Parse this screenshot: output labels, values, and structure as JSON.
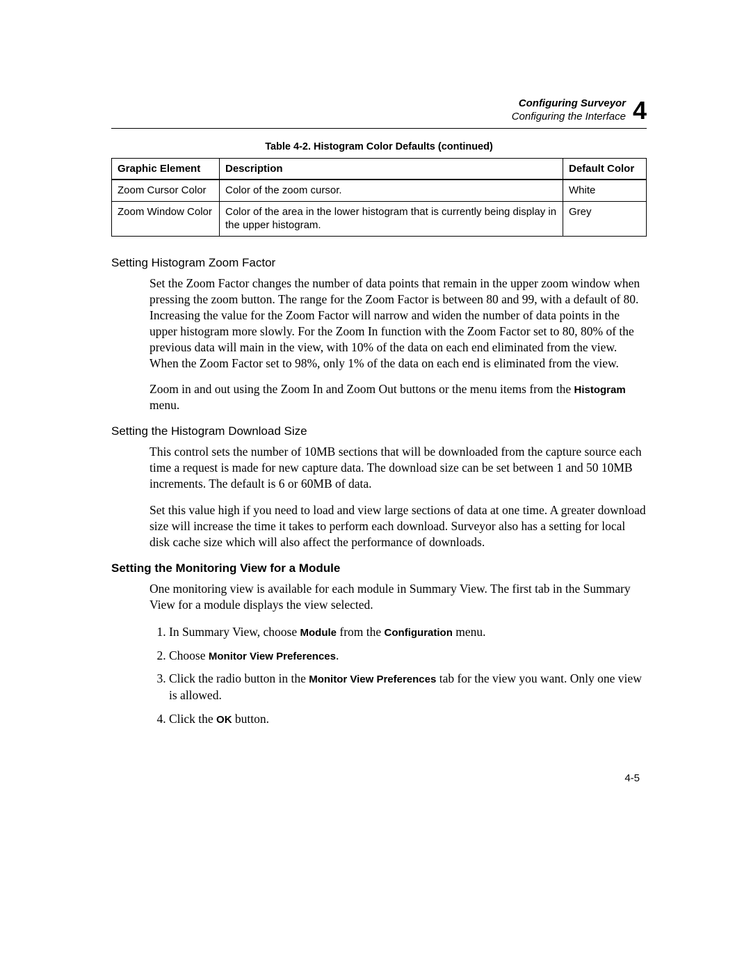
{
  "header": {
    "title": "Configuring Surveyor",
    "subtitle": "Configuring the Interface",
    "chapter_number": "4"
  },
  "table": {
    "caption": "Table 4-2. Histogram Color Defaults (continued)",
    "columns": [
      "Graphic Element",
      "Description",
      "Default Color"
    ],
    "rows": [
      [
        "Zoom Cursor Color",
        "Color of the zoom cursor.",
        "White"
      ],
      [
        "Zoom Window Color",
        "Color of the area in the lower histogram that is currently being display in the upper histogram.",
        "Grey"
      ]
    ]
  },
  "sections": {
    "zoom_factor": {
      "heading": "Setting Histogram Zoom Factor",
      "para1": "Set the Zoom Factor changes the number of data points that remain in the upper zoom window when pressing the zoom button. The range for the Zoom Factor is between 80 and 99, with a default of 80. Increasing the value for the Zoom Factor will narrow and widen the number of data points in the upper histogram more slowly. For the Zoom In function with the Zoom Factor set to 80, 80% of the previous data will main in the view, with 10% of the data on each end eliminated from the view. When the Zoom Factor set to 98%, only 1% of the data on each end is eliminated from the view.",
      "para2_pre": "Zoom in and out using the Zoom In   and Zoom Out   buttons or the menu items from the ",
      "para2_term": "Histogram",
      "para2_post": " menu."
    },
    "download_size": {
      "heading": "Setting the Histogram Download Size",
      "para1": "This control sets the number of 10MB sections that will be downloaded from the capture source each time a request is made for new capture data. The download size can be set between 1 and 50 10MB increments. The default is 6 or 60MB of data.",
      "para2": "Set this value high if you need to load and view large sections of data at one time. A greater download size will increase the time it takes to perform each download. Surveyor also has a setting for local disk cache size which will also affect the performance of downloads."
    },
    "monitoring_view": {
      "heading": "Setting the Monitoring View for a Module",
      "intro": "One monitoring view is available for each module in Summary View. The first tab in the Summary View for a module displays the view selected.",
      "step1_pre": "In Summary View, choose ",
      "step1_t1": "Module",
      "step1_mid": " from the ",
      "step1_t2": "Configuration",
      "step1_post": " menu.",
      "step2_pre": "Choose ",
      "step2_t1": "Monitor View Preferences",
      "step2_post": ".",
      "step3_pre": "Click the radio button in the ",
      "step3_t1": "Monitor View Preferences",
      "step3_post": " tab for the view you want. Only one view is allowed.",
      "step4_pre": "Click the ",
      "step4_t1": "OK",
      "step4_post": " button."
    }
  },
  "page_number": "4-5"
}
